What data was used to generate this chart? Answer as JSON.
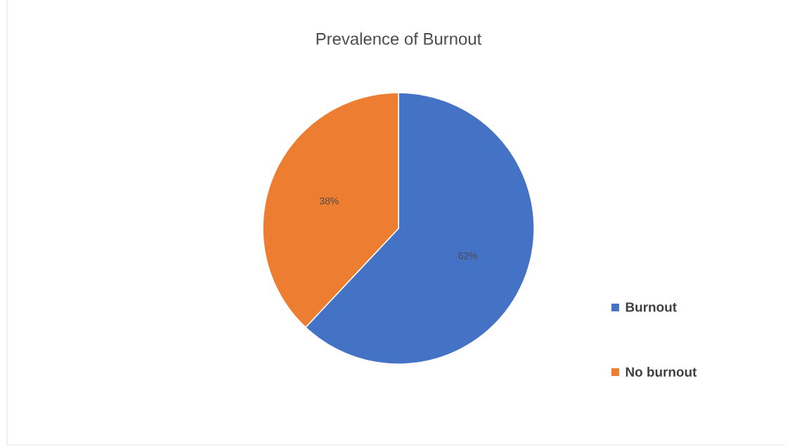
{
  "chart_data": {
    "type": "pie",
    "title": "Prevalence of Burnout",
    "categories": [
      "Burnout",
      "No burnout"
    ],
    "values": [
      62,
      38
    ],
    "value_labels": [
      "62%",
      "38%"
    ],
    "colors": [
      "#4472c4",
      "#ed7d31"
    ],
    "legend": "right"
  }
}
